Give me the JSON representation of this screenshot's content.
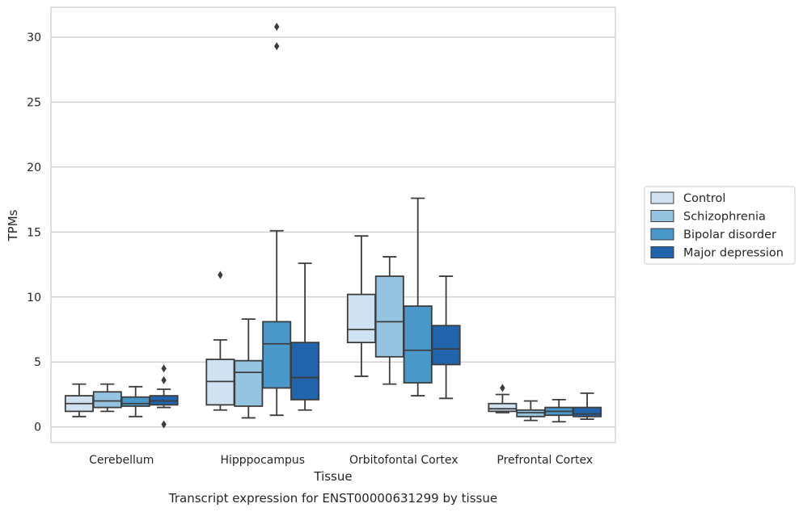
{
  "chart_data": {
    "type": "boxplot",
    "title": "Transcript expression for ENST00000631299 by tissue",
    "xlabel": "Tissue",
    "ylabel": "TPMs",
    "ylim": [
      -1.2,
      32.3
    ],
    "yticks": [
      0,
      5,
      10,
      15,
      20,
      25,
      30
    ],
    "grid": "horizontal",
    "legend_position": "right",
    "categories": [
      "Cerebellum",
      "Hipppocampus",
      "Orbitofontal Cortex",
      "Prefrontal Cortex"
    ],
    "series": [
      {
        "name": "Control",
        "color": "#d0e1f2",
        "boxes": [
          {
            "whisker_low": 0.8,
            "q1": 1.2,
            "median": 1.8,
            "q3": 2.4,
            "whisker_high": 3.3,
            "outliers": []
          },
          {
            "whisker_low": 1.3,
            "q1": 1.7,
            "median": 3.5,
            "q3": 5.2,
            "whisker_high": 6.7,
            "outliers": [
              11.7
            ]
          },
          {
            "whisker_low": 3.9,
            "q1": 6.5,
            "median": 7.5,
            "q3": 10.2,
            "whisker_high": 14.7,
            "outliers": []
          },
          {
            "whisker_low": 1.1,
            "q1": 1.2,
            "median": 1.4,
            "q3": 1.8,
            "whisker_high": 2.5,
            "outliers": [
              3.0
            ]
          }
        ]
      },
      {
        "name": "Schizophrenia",
        "color": "#94c4df",
        "boxes": [
          {
            "whisker_low": 1.2,
            "q1": 1.5,
            "median": 2.0,
            "q3": 2.7,
            "whisker_high": 3.3,
            "outliers": []
          },
          {
            "whisker_low": 0.7,
            "q1": 1.6,
            "median": 4.2,
            "q3": 5.1,
            "whisker_high": 8.3,
            "outliers": []
          },
          {
            "whisker_low": 3.3,
            "q1": 5.4,
            "median": 8.1,
            "q3": 11.6,
            "whisker_high": 13.1,
            "outliers": []
          },
          {
            "whisker_low": 0.5,
            "q1": 0.8,
            "median": 1.1,
            "q3": 1.3,
            "whisker_high": 2.0,
            "outliers": []
          }
        ]
      },
      {
        "name": "Bipolar disorder",
        "color": "#4a98c9",
        "boxes": [
          {
            "whisker_low": 0.8,
            "q1": 1.6,
            "median": 1.8,
            "q3": 2.3,
            "whisker_high": 3.1,
            "outliers": []
          },
          {
            "whisker_low": 0.9,
            "q1": 3.0,
            "median": 6.4,
            "q3": 8.1,
            "whisker_high": 15.1,
            "outliers": [
              30.8,
              29.3
            ]
          },
          {
            "whisker_low": 2.4,
            "q1": 3.4,
            "median": 5.9,
            "q3": 9.3,
            "whisker_high": 17.6,
            "outliers": []
          },
          {
            "whisker_low": 0.4,
            "q1": 0.9,
            "median": 1.2,
            "q3": 1.5,
            "whisker_high": 2.1,
            "outliers": []
          }
        ]
      },
      {
        "name": "Major depression",
        "color": "#2164ab",
        "boxes": [
          {
            "whisker_low": 1.5,
            "q1": 1.7,
            "median": 2.0,
            "q3": 2.4,
            "whisker_high": 2.9,
            "outliers": [
              4.5,
              3.6,
              0.2
            ]
          },
          {
            "whisker_low": 1.3,
            "q1": 2.1,
            "median": 3.8,
            "q3": 6.5,
            "whisker_high": 12.6,
            "outliers": []
          },
          {
            "whisker_low": 2.2,
            "q1": 4.8,
            "median": 6.0,
            "q3": 7.8,
            "whisker_high": 11.6,
            "outliers": []
          },
          {
            "whisker_low": 0.6,
            "q1": 0.8,
            "median": 1.0,
            "q3": 1.5,
            "whisker_high": 2.6,
            "outliers": []
          }
        ]
      }
    ]
  }
}
